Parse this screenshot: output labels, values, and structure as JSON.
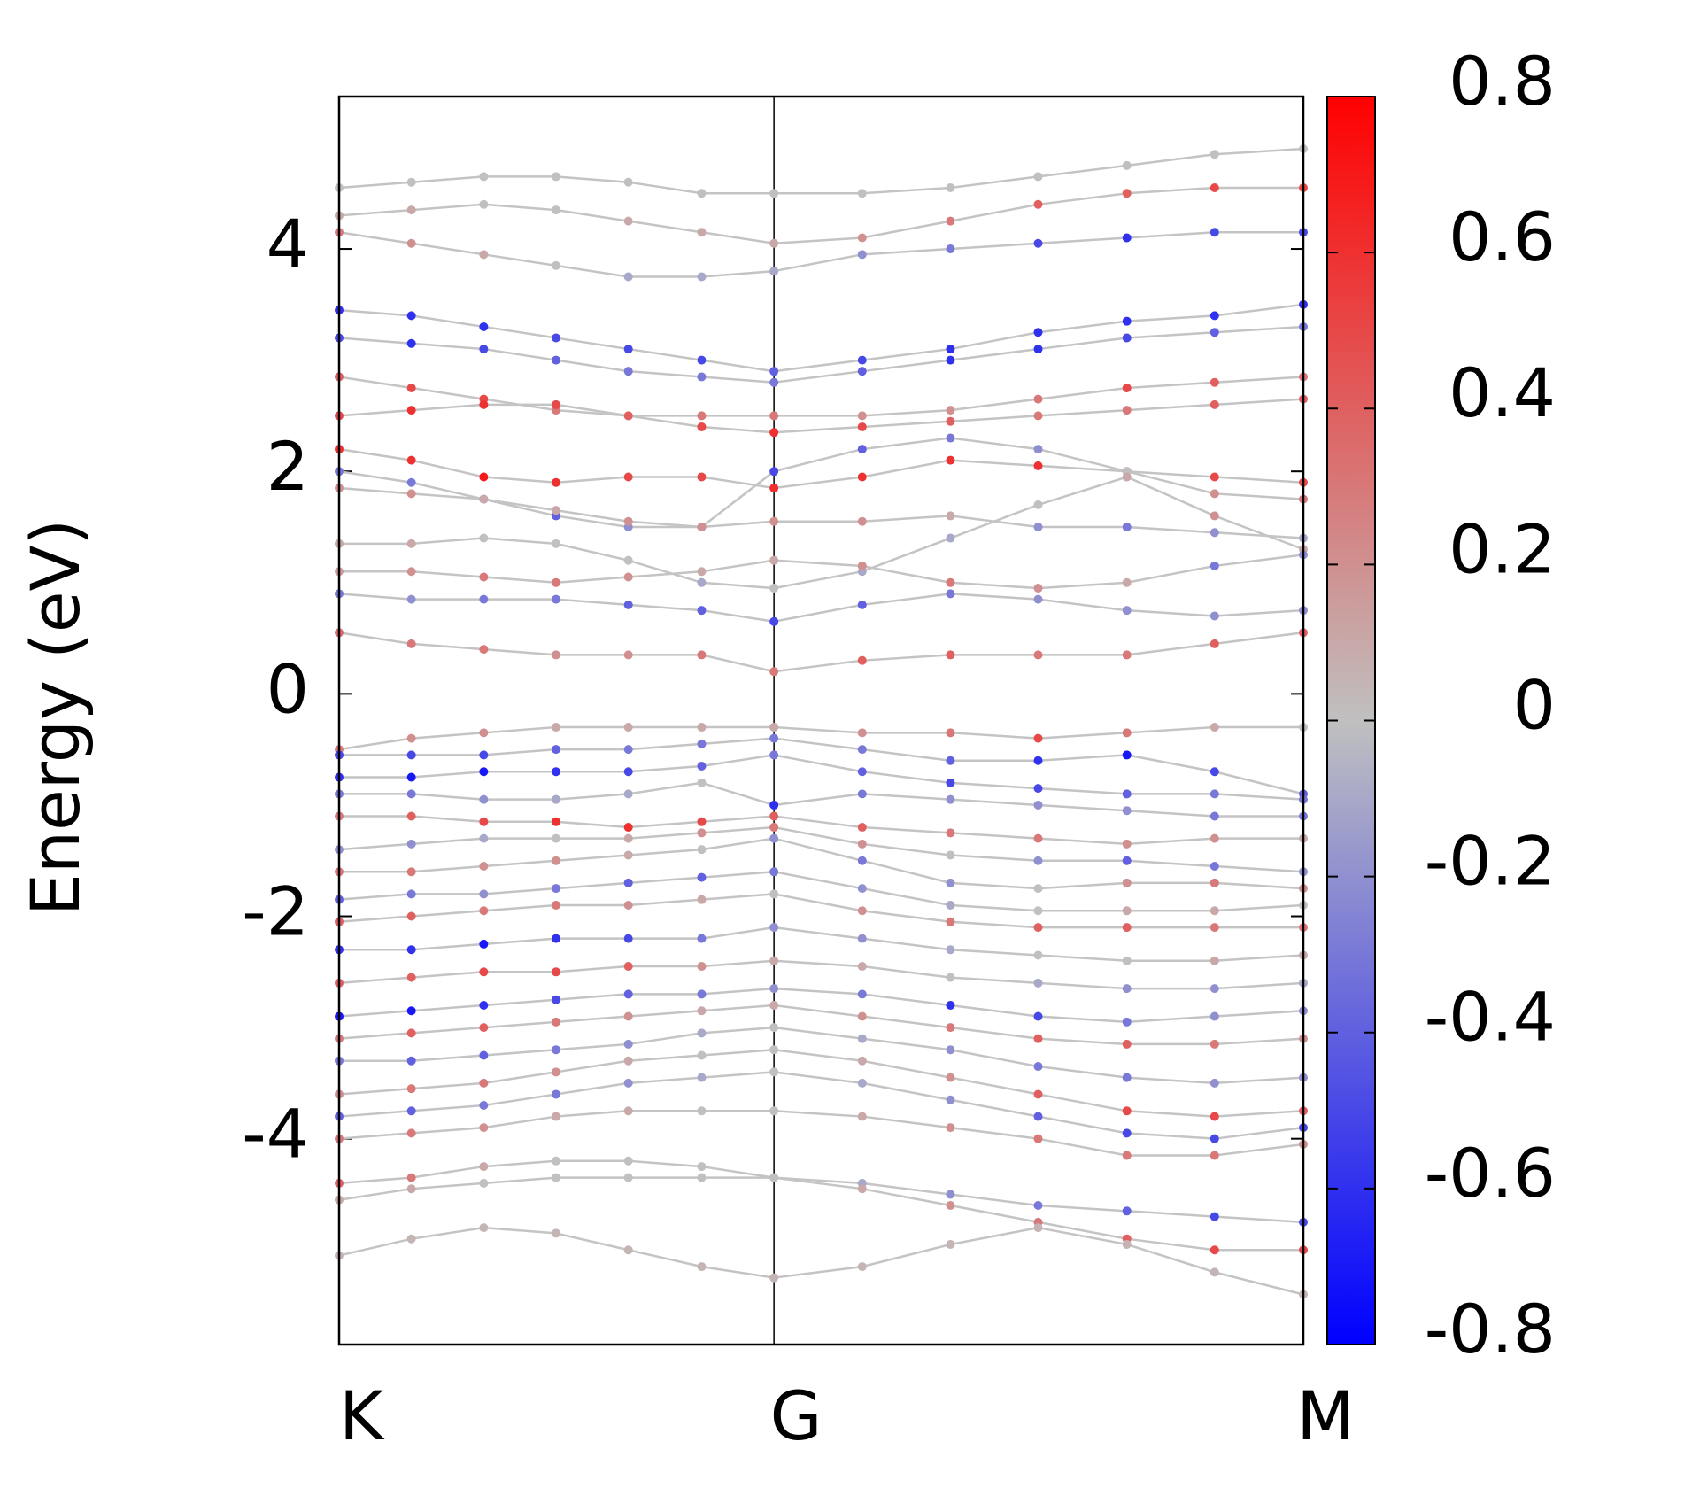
{
  "chart_data": {
    "type": "bands",
    "y_label": "Energy (eV)",
    "x": [
      0,
      0.075,
      0.15,
      0.225,
      0.3,
      0.376,
      0.451,
      0.5425,
      0.634,
      0.725,
      0.817,
      0.908,
      1
    ],
    "xlim": [
      0,
      1
    ],
    "xticks": [
      {
        "value": 0,
        "label": "K"
      },
      {
        "value": 0.451,
        "label": "G"
      },
      {
        "value": 1,
        "label": "M"
      }
    ],
    "ylim": [
      -5.85,
      5.37
    ],
    "yticks": [
      -4,
      -2,
      0,
      2,
      4
    ],
    "clim": [
      -0.8,
      0.8
    ],
    "cticks": [
      -0.8,
      -0.6,
      -0.4,
      -0.2,
      0,
      0.2,
      0.4,
      0.6,
      0.8
    ],
    "colormap": [
      "#0000ff",
      "#c0c0c0",
      "#ff0000"
    ],
    "bands": [
      {
        "energies": [
          4.55,
          4.6,
          4.65,
          4.65,
          4.6,
          4.5,
          4.5,
          4.5,
          4.55,
          4.65,
          4.75,
          4.85,
          4.9
        ],
        "projection": [
          0,
          0,
          0,
          0,
          0,
          0,
          0,
          0,
          0,
          0,
          0,
          0,
          0
        ]
      },
      {
        "energies": [
          4.3,
          4.35,
          4.4,
          4.35,
          4.25,
          4.15,
          4.05,
          4.1,
          4.25,
          4.4,
          4.5,
          4.55,
          4.55
        ],
        "projection": [
          0.1,
          0.1,
          0,
          0,
          0.1,
          0.1,
          0.1,
          0.2,
          0.3,
          0.4,
          0.4,
          0.5,
          0.5
        ]
      },
      {
        "energies": [
          4.15,
          4.05,
          3.95,
          3.85,
          3.75,
          3.75,
          3.8,
          3.95,
          4.0,
          4.05,
          4.1,
          4.15,
          4.15
        ],
        "projection": [
          0.3,
          0.2,
          0.1,
          0,
          -0.1,
          -0.1,
          -0.1,
          -0.2,
          -0.3,
          -0.5,
          -0.6,
          -0.5,
          -0.5
        ]
      },
      {
        "energies": [
          3.45,
          3.4,
          3.3,
          3.2,
          3.1,
          3.0,
          2.9,
          3.0,
          3.1,
          3.25,
          3.35,
          3.4,
          3.5
        ],
        "projection": [
          -0.6,
          -0.6,
          -0.6,
          -0.5,
          -0.5,
          -0.5,
          -0.4,
          -0.5,
          -0.6,
          -0.6,
          -0.6,
          -0.6,
          -0.6
        ]
      },
      {
        "energies": [
          3.2,
          3.15,
          3.1,
          3.0,
          2.9,
          2.85,
          2.8,
          2.9,
          3.0,
          3.1,
          3.2,
          3.25,
          3.3
        ],
        "projection": [
          -0.5,
          -0.6,
          -0.5,
          -0.4,
          -0.3,
          -0.3,
          -0.3,
          -0.4,
          -0.6,
          -0.6,
          -0.5,
          -0.4,
          -0.3
        ]
      },
      {
        "energies": [
          2.85,
          2.75,
          2.65,
          2.55,
          2.5,
          2.5,
          2.5,
          2.5,
          2.55,
          2.65,
          2.75,
          2.8,
          2.85
        ],
        "projection": [
          0.4,
          0.5,
          0.5,
          0.3,
          0.2,
          0.3,
          0.3,
          0.2,
          0.2,
          0.3,
          0.5,
          0.4,
          0.3
        ]
      },
      {
        "energies": [
          2.5,
          2.55,
          2.6,
          2.6,
          2.5,
          2.4,
          2.35,
          2.4,
          2.45,
          2.5,
          2.55,
          2.6,
          2.65
        ],
        "projection": [
          0.5,
          0.6,
          0.6,
          0.5,
          0.4,
          0.5,
          0.6,
          0.5,
          0.4,
          0.3,
          0.3,
          0.4,
          0.4
        ]
      },
      {
        "energies": [
          2.2,
          2.1,
          1.95,
          1.9,
          1.95,
          1.95,
          1.85,
          1.95,
          2.1,
          2.05,
          2.0,
          1.95,
          1.9
        ],
        "projection": [
          0.6,
          0.6,
          0.7,
          0.6,
          0.5,
          0.5,
          0.6,
          0.6,
          0.6,
          0.6,
          0.6,
          0.5,
          0.5
        ]
      },
      {
        "energies": [
          2.0,
          1.9,
          1.75,
          1.6,
          1.5,
          1.5,
          2.0,
          2.2,
          2.3,
          2.2,
          2.0,
          1.8,
          1.75
        ],
        "projection": [
          -0.3,
          -0.3,
          -0.4,
          -0.4,
          -0.2,
          -0.3,
          -0.5,
          -0.4,
          -0.3,
          -0.2,
          0,
          0.2,
          0.3
        ]
      },
      {
        "energies": [
          1.85,
          1.8,
          1.75,
          1.65,
          1.55,
          1.5,
          1.55,
          1.55,
          1.6,
          1.5,
          1.5,
          1.45,
          1.4
        ],
        "projection": [
          0.2,
          0.2,
          0.1,
          0.1,
          0.2,
          0.2,
          0.2,
          0.2,
          0.1,
          -0.2,
          -0.3,
          -0.2,
          -0.1
        ]
      },
      {
        "energies": [
          1.35,
          1.35,
          1.4,
          1.35,
          1.2,
          1.0,
          0.95,
          1.1,
          1.4,
          1.7,
          1.95,
          1.6,
          1.3
        ],
        "projection": [
          0.1,
          0.1,
          0,
          0,
          0,
          -0.1,
          0,
          -0.1,
          -0.1,
          0,
          0.1,
          0.2,
          0.1
        ]
      },
      {
        "energies": [
          1.1,
          1.1,
          1.05,
          1.0,
          1.05,
          1.1,
          1.2,
          1.15,
          1.0,
          0.95,
          1.0,
          1.15,
          1.25
        ],
        "projection": [
          0.15,
          0.2,
          0.3,
          0.3,
          0.2,
          0.1,
          0.1,
          0.2,
          0.3,
          0.2,
          0.1,
          -0.3,
          -0.2
        ]
      },
      {
        "energies": [
          0.9,
          0.85,
          0.85,
          0.85,
          0.8,
          0.75,
          0.65,
          0.8,
          0.9,
          0.85,
          0.75,
          0.7,
          0.75
        ],
        "projection": [
          -0.3,
          -0.2,
          -0.3,
          -0.3,
          -0.4,
          -0.4,
          -0.5,
          -0.4,
          -0.3,
          -0.2,
          -0.2,
          -0.2,
          -0.2
        ]
      },
      {
        "energies": [
          0.55,
          0.45,
          0.4,
          0.35,
          0.35,
          0.35,
          0.2,
          0.3,
          0.35,
          0.35,
          0.35,
          0.45,
          0.55
        ],
        "projection": [
          0.35,
          0.3,
          0.3,
          0.2,
          0.2,
          0.3,
          0.3,
          0.4,
          0.4,
          0.3,
          0.3,
          0.4,
          0.4
        ]
      },
      {
        "energies": [
          -0.5,
          -0.4,
          -0.35,
          -0.3,
          -0.3,
          -0.3,
          -0.3,
          -0.35,
          -0.35,
          -0.4,
          -0.35,
          -0.3,
          -0.3
        ],
        "projection": [
          0.3,
          0.2,
          0.2,
          0.1,
          0.1,
          0.1,
          0.1,
          0.2,
          0.3,
          0.5,
          0.3,
          0.1,
          0
        ]
      },
      {
        "energies": [
          -0.55,
          -0.55,
          -0.55,
          -0.5,
          -0.5,
          -0.45,
          -0.4,
          -0.5,
          -0.6,
          -0.6,
          -0.55,
          -0.7,
          -0.9
        ],
        "projection": [
          -0.5,
          -0.5,
          -0.5,
          -0.4,
          -0.3,
          -0.3,
          -0.3,
          -0.3,
          -0.4,
          -0.6,
          -0.7,
          -0.5,
          -0.4
        ]
      },
      {
        "energies": [
          -0.75,
          -0.75,
          -0.7,
          -0.7,
          -0.7,
          -0.65,
          -0.55,
          -0.7,
          -0.8,
          -0.85,
          -0.9,
          -0.9,
          -0.95
        ],
        "projection": [
          -0.6,
          -0.7,
          -0.7,
          -0.6,
          -0.5,
          -0.4,
          -0.3,
          -0.4,
          -0.5,
          -0.5,
          -0.4,
          -0.3,
          -0.3
        ]
      },
      {
        "energies": [
          -0.9,
          -0.9,
          -0.95,
          -0.95,
          -0.9,
          -0.8,
          -1.0,
          -0.9,
          -0.95,
          -1.0,
          -1.05,
          -1.1,
          -1.1
        ],
        "projection": [
          -0.3,
          -0.3,
          -0.2,
          -0.1,
          -0.1,
          0,
          -0.6,
          -0.3,
          -0.2,
          -0.2,
          -0.2,
          -0.3,
          -0.3
        ]
      },
      {
        "energies": [
          -1.1,
          -1.1,
          -1.15,
          -1.15,
          -1.2,
          -1.15,
          -1.1,
          -1.2,
          -1.25,
          -1.3,
          -1.35,
          -1.3,
          -1.3
        ],
        "projection": [
          0.3,
          0.4,
          0.5,
          0.6,
          0.6,
          0.5,
          0.4,
          0.4,
          0.3,
          0.3,
          0.2,
          0.2,
          0.1
        ]
      },
      {
        "energies": [
          -1.4,
          -1.35,
          -1.3,
          -1.3,
          -1.3,
          -1.25,
          -1.2,
          -1.35,
          -1.45,
          -1.5,
          -1.5,
          -1.55,
          -1.6
        ],
        "projection": [
          -0.2,
          -0.2,
          -0.1,
          0,
          0.1,
          0.2,
          0.3,
          0.2,
          0,
          -0.2,
          -0.4,
          -0.3,
          -0.2
        ]
      },
      {
        "energies": [
          -1.6,
          -1.6,
          -1.55,
          -1.5,
          -1.45,
          -1.4,
          -1.3,
          -1.5,
          -1.7,
          -1.75,
          -1.7,
          -1.7,
          -1.75
        ],
        "projection": [
          0.3,
          0.3,
          0.2,
          0.2,
          0.1,
          0,
          -0.2,
          -0.3,
          -0.2,
          0,
          0.2,
          0.3,
          0.2
        ]
      },
      {
        "energies": [
          -1.85,
          -1.8,
          -1.8,
          -1.75,
          -1.7,
          -1.65,
          -1.6,
          -1.75,
          -1.9,
          -1.95,
          -1.95,
          -1.95,
          -1.9
        ],
        "projection": [
          -0.4,
          -0.3,
          -0.2,
          -0.3,
          -0.4,
          -0.4,
          -0.3,
          -0.2,
          -0.1,
          0,
          0.1,
          0.1,
          0
        ]
      },
      {
        "energies": [
          -2.05,
          -2.0,
          -1.95,
          -1.9,
          -1.9,
          -1.85,
          -1.8,
          -1.95,
          -2.05,
          -2.1,
          -2.1,
          -2.1,
          -2.1
        ],
        "projection": [
          0.4,
          0.4,
          0.3,
          0.3,
          0.2,
          0.1,
          0,
          0.2,
          0.3,
          0.4,
          0.4,
          0.3,
          0.3
        ]
      },
      {
        "energies": [
          -2.3,
          -2.3,
          -2.25,
          -2.2,
          -2.2,
          -2.2,
          -2.1,
          -2.2,
          -2.3,
          -2.35,
          -2.4,
          -2.4,
          -2.35
        ],
        "projection": [
          -0.6,
          -0.6,
          -0.7,
          -0.6,
          -0.5,
          -0.3,
          -0.2,
          -0.2,
          -0.1,
          0,
          0,
          0.1,
          0.1
        ]
      },
      {
        "energies": [
          -2.6,
          -2.55,
          -2.5,
          -2.5,
          -2.45,
          -2.45,
          -2.4,
          -2.45,
          -2.55,
          -2.6,
          -2.65,
          -2.65,
          -2.6
        ],
        "projection": [
          0.4,
          0.4,
          0.5,
          0.5,
          0.4,
          0.2,
          0.1,
          0.1,
          0,
          -0.1,
          -0.2,
          -0.2,
          -0.1
        ]
      },
      {
        "energies": [
          -2.9,
          -2.85,
          -2.8,
          -2.75,
          -2.7,
          -2.7,
          -2.65,
          -2.7,
          -2.8,
          -2.9,
          -2.95,
          -2.9,
          -2.85
        ],
        "projection": [
          -0.7,
          -0.7,
          -0.6,
          -0.5,
          -0.4,
          -0.3,
          -0.2,
          -0.3,
          -0.6,
          -0.5,
          -0.3,
          -0.2,
          -0.2
        ]
      },
      {
        "energies": [
          -3.1,
          -3.05,
          -3.0,
          -2.95,
          -2.9,
          -2.85,
          -2.8,
          -2.9,
          -3.0,
          -3.1,
          -3.15,
          -3.15,
          -3.1
        ],
        "projection": [
          0.3,
          0.4,
          0.4,
          0.3,
          0.2,
          0.1,
          0.1,
          0.2,
          0.3,
          0.4,
          0.4,
          0.3,
          0.2
        ]
      },
      {
        "energies": [
          -3.3,
          -3.3,
          -3.25,
          -3.2,
          -3.15,
          -3.05,
          -3.0,
          -3.1,
          -3.2,
          -3.35,
          -3.45,
          -3.5,
          -3.45
        ],
        "projection": [
          -0.3,
          -0.4,
          -0.4,
          -0.3,
          -0.2,
          -0.1,
          0,
          -0.1,
          -0.2,
          -0.3,
          -0.3,
          -0.2,
          -0.2
        ]
      },
      {
        "energies": [
          -3.6,
          -3.55,
          -3.5,
          -3.4,
          -3.3,
          -3.25,
          -3.2,
          -3.3,
          -3.45,
          -3.6,
          -3.75,
          -3.8,
          -3.75
        ],
        "projection": [
          0.2,
          0.3,
          0.3,
          0.2,
          0.1,
          0,
          0,
          0.1,
          0.2,
          0.4,
          0.5,
          0.5,
          0.4
        ]
      },
      {
        "energies": [
          -3.8,
          -3.75,
          -3.7,
          -3.6,
          -3.5,
          -3.45,
          -3.4,
          -3.5,
          -3.65,
          -3.8,
          -3.95,
          -4.0,
          -3.9
        ],
        "projection": [
          -0.4,
          -0.4,
          -0.3,
          -0.3,
          -0.2,
          -0.1,
          0,
          -0.1,
          -0.2,
          -0.4,
          -0.5,
          -0.5,
          -0.5
        ]
      },
      {
        "energies": [
          -4.0,
          -3.95,
          -3.9,
          -3.8,
          -3.75,
          -3.75,
          -3.75,
          -3.8,
          -3.9,
          -4.0,
          -4.15,
          -4.15,
          -4.05
        ],
        "projection": [
          0.3,
          0.3,
          0.2,
          0.1,
          0.1,
          0,
          0,
          0.1,
          0.2,
          0.3,
          0.3,
          0.3,
          0.2
        ]
      },
      {
        "energies": [
          -4.4,
          -4.35,
          -4.25,
          -4.2,
          -4.2,
          -4.25,
          -4.35,
          -4.4,
          -4.5,
          -4.6,
          -4.65,
          -4.7,
          -4.75
        ],
        "projection": [
          0.4,
          0.3,
          0.1,
          0,
          0,
          0,
          0,
          -0.1,
          -0.2,
          -0.3,
          -0.4,
          -0.5,
          -0.5
        ]
      },
      {
        "energies": [
          -4.55,
          -4.45,
          -4.4,
          -4.35,
          -4.35,
          -4.35,
          -4.35,
          -4.45,
          -4.6,
          -4.75,
          -4.9,
          -5.0,
          -5.0
        ],
        "projection": [
          0.1,
          0.1,
          0,
          0,
          0,
          0,
          0,
          0.1,
          0.2,
          0.3,
          0.4,
          0.5,
          0.5
        ]
      },
      {
        "energies": [
          -5.05,
          -4.9,
          -4.8,
          -4.85,
          -5.0,
          -5.15,
          -5.25,
          -5.15,
          -4.95,
          -4.8,
          -4.95,
          -5.2,
          -5.4
        ],
        "projection": [
          0.05,
          0.05,
          0.05,
          0.05,
          0.05,
          0.05,
          0.05,
          0.05,
          0.05,
          0.05,
          0.05,
          0.05,
          0.05
        ]
      }
    ]
  }
}
